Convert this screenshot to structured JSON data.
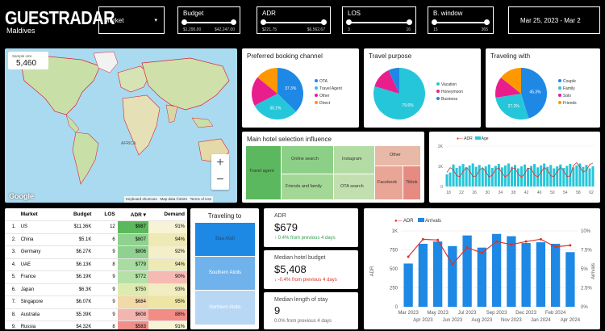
{
  "header": {
    "logo": "GUESTRADAR",
    "subtitle": "Maldives",
    "market_label": "Market",
    "budget": {
      "label": "Budget",
      "min": "$1,295.00",
      "max": "$42,247.00"
    },
    "adr": {
      "label": "ADR",
      "min": "$221.75",
      "max": "$6,562.67"
    },
    "los": {
      "label": "LOS",
      "min": "3",
      "max": "16"
    },
    "bwindow": {
      "label": "B. window",
      "min": "15",
      "max": "365"
    },
    "date_range": "Mar 25, 2023 - Mar 2"
  },
  "map": {
    "sample_label": "Sample size",
    "sample_value": "5,460",
    "google": "Google",
    "attribution": [
      "Keyboard shortcuts",
      "Map data ©2023",
      "Terms of Use"
    ],
    "labels": [
      "AFRICA"
    ],
    "zoom_in": "+",
    "zoom_out": "−"
  },
  "booking": {
    "title": "Preferred booking channel",
    "slices": [
      {
        "label": "OTA",
        "value": 37.3,
        "color": "#1e88e5"
      },
      {
        "label": "Travel Agent",
        "value": 30.1,
        "color": "#26c6da"
      },
      {
        "label": "Other",
        "value": 18.5,
        "color": "#e91e8c"
      },
      {
        "label": "Direct",
        "value": 14.1,
        "color": "#ff9800"
      }
    ],
    "inner_labels": [
      "37.3%",
      "30.1%"
    ]
  },
  "purpose": {
    "title": "Travel purpose",
    "slices": [
      {
        "label": "Vacation",
        "value": 79.6,
        "color": "#26c6da"
      },
      {
        "label": "Honeymoon",
        "value": 13.5,
        "color": "#e91e8c"
      },
      {
        "label": "Business",
        "value": 6.9,
        "color": "#1e88e5"
      }
    ],
    "inner_labels": [
      "79.6%"
    ]
  },
  "with": {
    "title": "Traveling with",
    "slices": [
      {
        "label": "Couple",
        "value": 45.3,
        "color": "#1e88e5"
      },
      {
        "label": "Family",
        "value": 27.2,
        "color": "#26c6da"
      },
      {
        "label": "Solo",
        "value": 13.2,
        "color": "#e91e8c"
      },
      {
        "label": "Friends",
        "value": 14.3,
        "color": "#ff9800"
      }
    ],
    "inner_labels": [
      "45.3%",
      "27.2%"
    ]
  },
  "influence": {
    "title": "Main hotel selection influence",
    "cells": [
      "Travel agent",
      "Online search",
      "Instagram",
      "Other",
      "Friends and family",
      "OTA search",
      "Facebook",
      "Tiktok"
    ]
  },
  "adrage": {
    "legend": [
      "ADR",
      "Age"
    ],
    "yticks": [
      "2K",
      "1K",
      "0"
    ],
    "xticks": [
      "18",
      "22",
      "26",
      "30",
      "34",
      "38",
      "42",
      "46",
      "50",
      "54",
      "58",
      "62"
    ]
  },
  "table": {
    "headers": [
      "",
      "Market",
      "Budget",
      "LOS",
      "ADR ▾",
      "Demand"
    ],
    "rows": [
      [
        "1.",
        "US",
        "$11.36K",
        "12",
        "$987",
        "91%"
      ],
      [
        "2.",
        "China",
        "$5.1K",
        "6",
        "$807",
        "94%"
      ],
      [
        "3.",
        "Germany",
        "$6.27K",
        "9",
        "$806",
        "92%"
      ],
      [
        "4.",
        "UAE",
        "$6.13K",
        "8",
        "$779",
        "94%"
      ],
      [
        "5.",
        "France",
        "$6.19K",
        "9",
        "$772",
        "90%"
      ],
      [
        "6.",
        "Japan",
        "$6.3K",
        "9",
        "$750",
        "93%"
      ],
      [
        "7.",
        "Singapore",
        "$6.07K",
        "9",
        "$684",
        "95%"
      ],
      [
        "8.",
        "Australia",
        "$5.39K",
        "9",
        "$608",
        "88%"
      ],
      [
        "9.",
        "Russia",
        "$4.32K",
        "8",
        "$583",
        "91%"
      ]
    ],
    "adr_colors": [
      "#5cb85c",
      "#8fd18f",
      "#8fd18f",
      "#a8dca0",
      "#b5e0a8",
      "#ddebb0",
      "#f2d9a8",
      "#f3b5b0",
      "#ef8f8a"
    ],
    "demand_colors": [
      "#f7f3d6",
      "#efe9b5",
      "#f4efc8",
      "#efe9b5",
      "#f6b9b4",
      "#f2edc0",
      "#eee5a3",
      "#f28d86",
      "#f7f3d6"
    ]
  },
  "traveling_to": {
    "title": "Traveling to",
    "items": [
      "Baa Atoll",
      "Southern Atolls",
      "Northern Atolls"
    ]
  },
  "kpis": [
    {
      "label": "ADR",
      "value": "$679",
      "change": "↑ 0.4% from previous 4 days",
      "color": "#2e9e4a"
    },
    {
      "label": "Median hotel budget",
      "value": "$5,408",
      "change": "↓ -0.4% from previous 4 days",
      "color": "#d9342b"
    },
    {
      "label": "Median length of stay",
      "value": "9",
      "change": "0.0% from previous 4 days",
      "color": "#666666"
    }
  ],
  "arrivals": {
    "legend": [
      "ADR",
      "Arrivals"
    ],
    "ylabel": "ADR",
    "y2label": "Arrivals",
    "yticks": [
      "1K",
      "750",
      "500",
      "250",
      "0"
    ],
    "y2ticks": [
      "10%",
      "7.5%",
      "5%",
      "2.5%",
      "0%"
    ],
    "xticks_top": [
      "Mar 2023",
      "May 2023",
      "Jul 2023",
      "Sep 2023",
      "Dec 2023",
      "Feb 2024"
    ],
    "xticks_bot": [
      "Apr 2023",
      "Jun 2023",
      "Aug 2023",
      "Nov 2023",
      "Jan 2024",
      "Apr 2024"
    ]
  },
  "chart_data": [
    {
      "type": "bar",
      "title": "",
      "series": [
        {
          "name": "Arrivals",
          "values": [
            570,
            830,
            860,
            800,
            940,
            780,
            960,
            930,
            840,
            850,
            830,
            720
          ]
        },
        {
          "name": "ADR",
          "values": [
            6.6,
            8.9,
            8.8,
            5.6,
            7.8,
            7.1,
            8.6,
            8.2,
            8.6,
            8.9,
            7.9,
            8.1
          ]
        }
      ],
      "ylim": [
        0,
        1000
      ]
    }
  ]
}
